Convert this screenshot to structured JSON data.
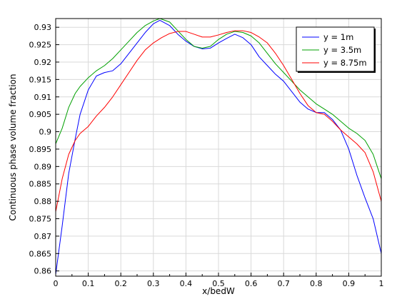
{
  "chart_data": {
    "type": "line",
    "title": "",
    "xlabel": "x/bedW",
    "ylabel": "Continuous phase volume fraction",
    "xlim": [
      0,
      1
    ],
    "ylim": [
      0.8585,
      0.9325
    ],
    "grid": true,
    "legend_position": "top-right",
    "x_ticks": [
      0,
      0.1,
      0.2,
      0.3,
      0.4,
      0.5,
      0.6,
      0.7,
      0.8,
      0.9,
      1
    ],
    "x_tick_labels": [
      "0",
      "0.1",
      "0.2",
      "0.3",
      "0.4",
      "0.5",
      "0.6",
      "0.7",
      "0.8",
      "0.9",
      "1"
    ],
    "y_ticks": [
      0.86,
      0.865,
      0.87,
      0.875,
      0.88,
      0.885,
      0.89,
      0.895,
      0.9,
      0.905,
      0.91,
      0.915,
      0.92,
      0.925,
      0.93
    ],
    "y_tick_labels": [
      "0.86",
      "0.865",
      "0.87",
      "0.875",
      "0.88",
      "0.885",
      "0.89",
      "0.895",
      "0.9",
      "0.905",
      "0.91",
      "0.915",
      "0.92",
      "0.925",
      "0.93"
    ],
    "series": [
      {
        "name": "y = 1m",
        "color": "#0000ff",
        "x": [
          0,
          0.02,
          0.04,
          0.06,
          0.075,
          0.1,
          0.125,
          0.15,
          0.175,
          0.2,
          0.225,
          0.25,
          0.275,
          0.3,
          0.32,
          0.35,
          0.375,
          0.4,
          0.425,
          0.45,
          0.475,
          0.5,
          0.525,
          0.55,
          0.575,
          0.6,
          0.625,
          0.65,
          0.675,
          0.7,
          0.725,
          0.75,
          0.775,
          0.8,
          0.825,
          0.85,
          0.875,
          0.9,
          0.925,
          0.95,
          0.975,
          1
        ],
        "y": [
          0.859,
          0.873,
          0.888,
          0.898,
          0.905,
          0.912,
          0.916,
          0.917,
          0.9175,
          0.9195,
          0.9225,
          0.9255,
          0.9285,
          0.931,
          0.932,
          0.9305,
          0.928,
          0.926,
          0.9245,
          0.9238,
          0.924,
          0.9255,
          0.9268,
          0.928,
          0.927,
          0.925,
          0.9215,
          0.919,
          0.9165,
          0.9145,
          0.9115,
          0.9085,
          0.9065,
          0.9055,
          0.9055,
          0.9035,
          0.9005,
          0.895,
          0.8875,
          0.881,
          0.875,
          0.865
        ]
      },
      {
        "name": "y = 3.5m",
        "color": "#00a000",
        "x": [
          0,
          0.02,
          0.04,
          0.06,
          0.075,
          0.1,
          0.125,
          0.15,
          0.175,
          0.2,
          0.225,
          0.25,
          0.275,
          0.3,
          0.32,
          0.35,
          0.375,
          0.4,
          0.425,
          0.45,
          0.475,
          0.5,
          0.525,
          0.55,
          0.575,
          0.6,
          0.625,
          0.65,
          0.675,
          0.7,
          0.725,
          0.75,
          0.775,
          0.8,
          0.825,
          0.85,
          0.875,
          0.9,
          0.925,
          0.95,
          0.975,
          1
        ],
        "y": [
          0.8965,
          0.901,
          0.907,
          0.911,
          0.913,
          0.9155,
          0.9175,
          0.919,
          0.921,
          0.9235,
          0.926,
          0.9285,
          0.9305,
          0.9318,
          0.9325,
          0.9315,
          0.929,
          0.9265,
          0.9245,
          0.924,
          0.9245,
          0.9265,
          0.928,
          0.9288,
          0.9285,
          0.9275,
          0.9255,
          0.9225,
          0.9195,
          0.917,
          0.9145,
          0.912,
          0.91,
          0.908,
          0.9065,
          0.905,
          0.903,
          0.901,
          0.8995,
          0.8975,
          0.8935,
          0.8865
        ]
      },
      {
        "name": "y = 8.75m",
        "color": "#ff0000",
        "x": [
          0,
          0.02,
          0.04,
          0.06,
          0.075,
          0.1,
          0.125,
          0.15,
          0.175,
          0.2,
          0.225,
          0.25,
          0.275,
          0.3,
          0.325,
          0.35,
          0.375,
          0.4,
          0.425,
          0.45,
          0.475,
          0.5,
          0.525,
          0.55,
          0.575,
          0.6,
          0.625,
          0.65,
          0.675,
          0.7,
          0.725,
          0.75,
          0.775,
          0.8,
          0.825,
          0.85,
          0.875,
          0.9,
          0.925,
          0.95,
          0.975,
          1
        ],
        "y": [
          0.877,
          0.8865,
          0.8935,
          0.8975,
          0.8995,
          0.9015,
          0.9045,
          0.907,
          0.91,
          0.9135,
          0.917,
          0.9205,
          0.9235,
          0.9255,
          0.927,
          0.9282,
          0.9288,
          0.9288,
          0.928,
          0.9272,
          0.9272,
          0.9278,
          0.9285,
          0.929,
          0.929,
          0.9285,
          0.9272,
          0.9255,
          0.9225,
          0.919,
          0.915,
          0.911,
          0.9075,
          0.9055,
          0.905,
          0.903,
          0.9005,
          0.8985,
          0.8965,
          0.894,
          0.8885,
          0.88
        ]
      }
    ]
  }
}
